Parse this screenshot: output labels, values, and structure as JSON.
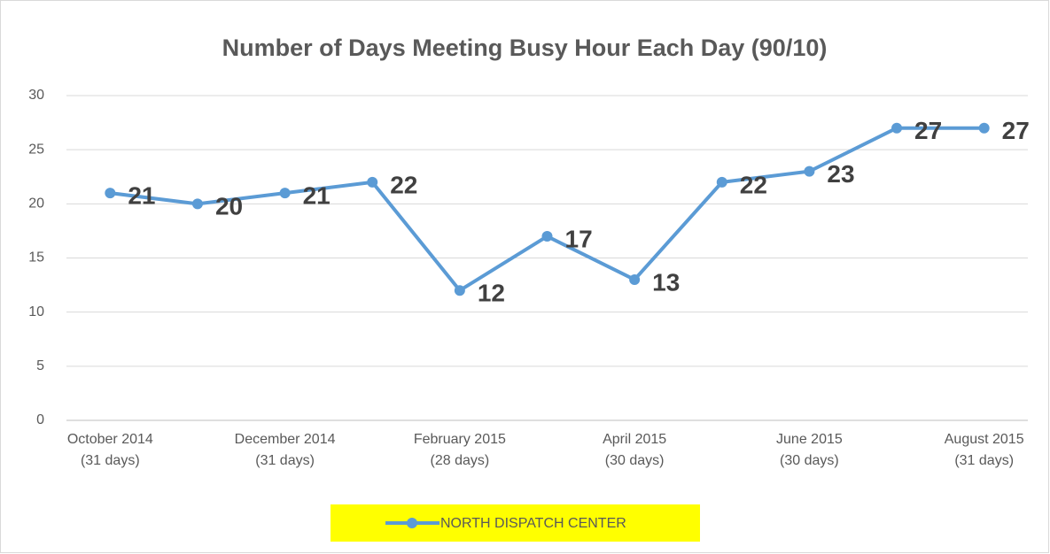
{
  "chart_data": {
    "type": "line",
    "title": "Number of Days Meeting Busy Hour Each Day (90/10)",
    "categories": [
      [
        "October 2014",
        "(31 days)"
      ],
      null,
      [
        "December 2014",
        "(31 days)"
      ],
      null,
      [
        "February 2015",
        "(28 days)"
      ],
      null,
      [
        "April 2015",
        "(30 days)"
      ],
      null,
      [
        "June 2015",
        "(30 days)"
      ],
      null,
      [
        "August 2015",
        "(31 days)"
      ]
    ],
    "series": [
      {
        "name": "NORTH DISPATCH CENTER",
        "color": "#5b9bd5",
        "values": [
          21,
          20,
          21,
          22,
          12,
          17,
          13,
          22,
          23,
          27,
          27
        ]
      }
    ],
    "ylim": [
      0,
      30
    ],
    "yticks": [
      0,
      5,
      10,
      15,
      20,
      25,
      30
    ],
    "grid": true,
    "legend": "bottom",
    "legend_background": "#ffff00",
    "data_labels": true
  }
}
